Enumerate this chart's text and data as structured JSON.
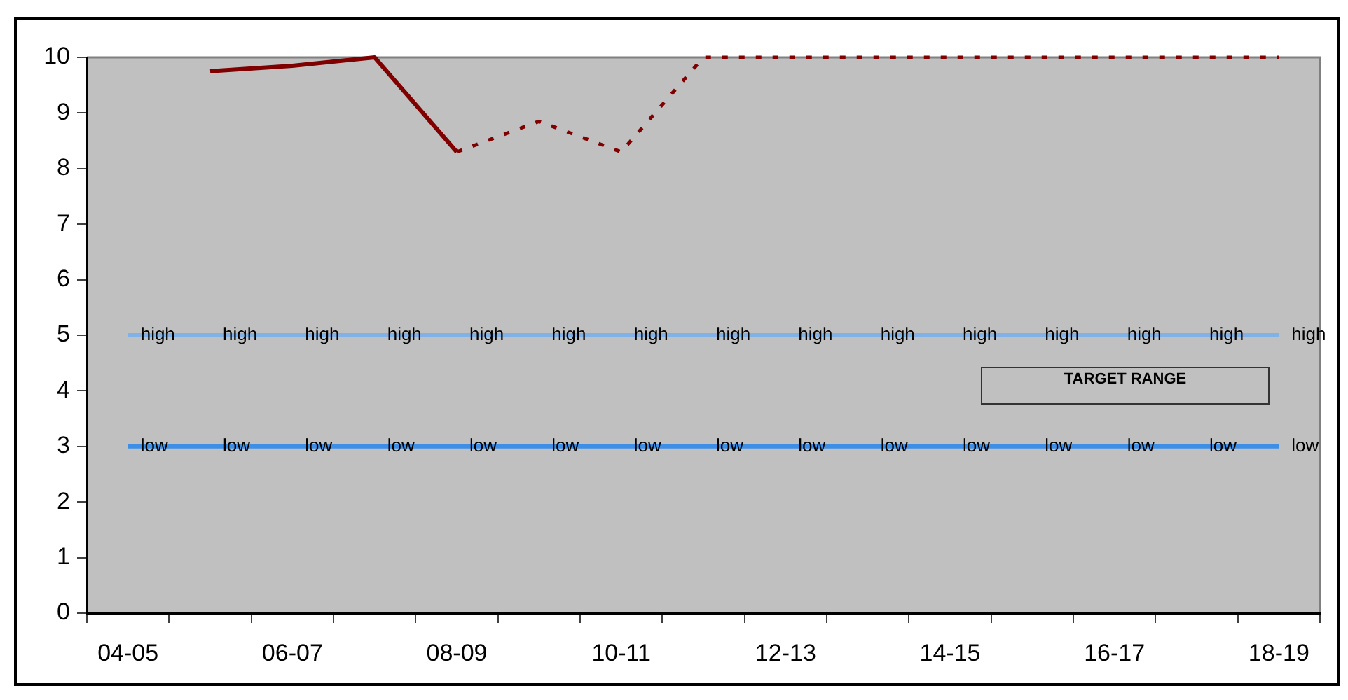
{
  "chart_data": {
    "type": "line",
    "categories": [
      "04-05",
      null,
      "06-07",
      null,
      "08-09",
      null,
      "10-11",
      null,
      "12-13",
      null,
      "14-15",
      null,
      "16-17",
      null,
      "18-19"
    ],
    "ylim": [
      0,
      10
    ],
    "yticks": [
      0,
      1,
      2,
      3,
      4,
      5,
      6,
      7,
      8,
      9,
      10
    ],
    "grid": false,
    "legend": false,
    "series": [
      {
        "color": "#800000",
        "values": [
          null,
          9.75,
          9.85,
          10,
          8.3,
          null,
          null,
          null,
          null,
          null,
          null,
          null,
          null,
          null,
          null
        ]
      },
      {
        "color": "#800000",
        "line_style": "dotted",
        "values": [
          null,
          null,
          null,
          null,
          8.3,
          8.85,
          8.3,
          10,
          10,
          10,
          10,
          10,
          10,
          10,
          10
        ]
      },
      {
        "name": "high",
        "color": "#80b2e8",
        "values": [
          5,
          5,
          5,
          5,
          5,
          5,
          5,
          5,
          5,
          5,
          5,
          5,
          5,
          5,
          5
        ]
      },
      {
        "name": "low",
        "color": "#3c8ee6",
        "values": [
          3,
          3,
          3,
          3,
          3,
          3,
          3,
          3,
          3,
          3,
          3,
          3,
          3,
          3,
          3
        ]
      }
    ],
    "annotations": [
      "TARGET RANGE"
    ]
  }
}
